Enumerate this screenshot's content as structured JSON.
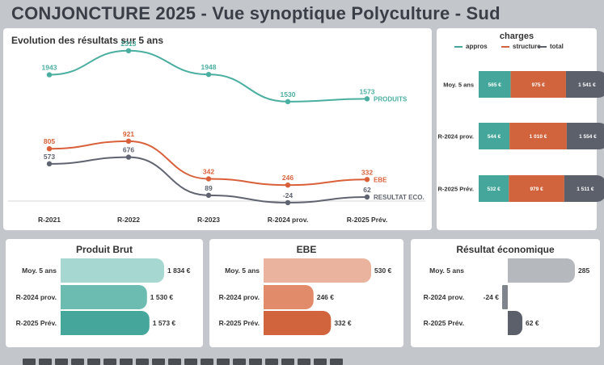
{
  "title": "CONJONCTURE 2025 - Vue synoptique Polyculture - Sud",
  "colors": {
    "produits": "#4aaea0",
    "ebe": "#d9603a",
    "resultat": "#5f6470",
    "appros": "#45a79b",
    "structure": "#d2643d",
    "total": "#5b606b",
    "pb": [
      "#a6d7d1",
      "#6cbcb2",
      "#45a79b"
    ],
    "ebe_bars": [
      "#eab39d",
      "#e28b6a",
      "#d2643d"
    ],
    "res_bars": [
      "#b5b8bd",
      "#80848d",
      "#5b606b"
    ]
  },
  "chart_data": [
    {
      "type": "line",
      "title": "Evolution des résultats sur 5 ans",
      "categories": [
        "R-2021",
        "R-2022",
        "R-2023",
        "R-2024 prov.",
        "R-2025 Prév."
      ],
      "series": [
        {
          "name": "PRODUITS",
          "values": [
            1943,
            2313,
            1948,
            1530,
            1573
          ]
        },
        {
          "name": "EBE",
          "values": [
            805,
            921,
            342,
            246,
            332
          ]
        },
        {
          "name": "RESULTAT ECO.",
          "values": [
            573,
            676,
            89,
            -24,
            62
          ]
        }
      ]
    },
    {
      "type": "bar",
      "stacked": true,
      "orientation": "horizontal",
      "title": "charges",
      "categories": [
        "Moy. 5 ans",
        "R-2024 prov.",
        "R-2025 Prév."
      ],
      "series": [
        {
          "name": "appros",
          "values": [
            565,
            544,
            532
          ],
          "labels": [
            "565 €",
            "544 €",
            "532 €"
          ]
        },
        {
          "name": "structure",
          "values": [
            975,
            1010,
            979
          ],
          "labels": [
            "975 €",
            "1 010 €",
            "979 €"
          ]
        },
        {
          "name": "total",
          "values": [
            1541,
            1554,
            1511
          ],
          "labels": [
            "1 541 €",
            "1 554 €",
            "1 511 €"
          ]
        }
      ],
      "legend": "top"
    },
    {
      "type": "bar",
      "orientation": "horizontal",
      "title": "Produit Brut",
      "categories": [
        "Moy. 5 ans",
        "R-2024 prov.",
        "R-2025 Prév."
      ],
      "values": [
        1834,
        1530,
        1573
      ],
      "labels": [
        "1 834 €",
        "1 530 €",
        "1 573 €"
      ]
    },
    {
      "type": "bar",
      "orientation": "horizontal",
      "title": "EBE",
      "categories": [
        "Moy. 5 ans",
        "R-2024 prov.",
        "R-2025 Prév."
      ],
      "values": [
        530,
        246,
        332
      ],
      "labels": [
        "530 €",
        "246 €",
        "332 €"
      ]
    },
    {
      "type": "bar",
      "orientation": "horizontal",
      "title": "Résultat économique",
      "categories": [
        "Moy. 5 ans",
        "R-2024 prov.",
        "R-2025 Prév."
      ],
      "values": [
        285,
        -24,
        62
      ],
      "labels": [
        "285",
        "-24 €",
        "62 €"
      ]
    }
  ]
}
